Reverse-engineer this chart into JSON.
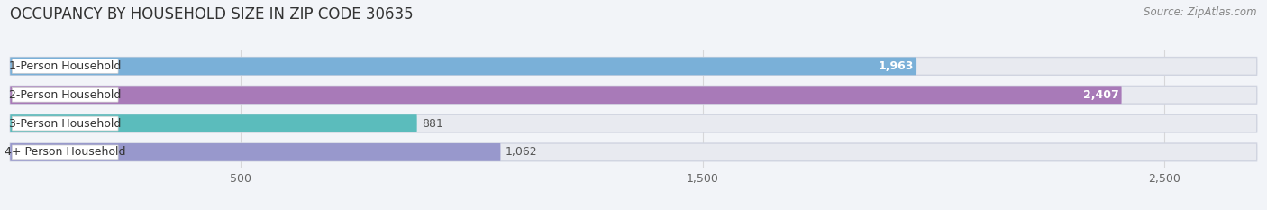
{
  "title": "OCCUPANCY BY HOUSEHOLD SIZE IN ZIP CODE 30635",
  "source": "Source: ZipAtlas.com",
  "categories": [
    "1-Person Household",
    "2-Person Household",
    "3-Person Household",
    "4+ Person Household"
  ],
  "values": [
    1963,
    2407,
    881,
    1062
  ],
  "bar_colors": [
    "#7ab0d8",
    "#a87ab8",
    "#5bbcbc",
    "#9898cc"
  ],
  "label_colors": [
    "white",
    "white",
    "#444444",
    "#444444"
  ],
  "xlim": [
    0,
    2700
  ],
  "xticks": [
    500,
    1500,
    2500
  ],
  "background_color": "#f2f4f8",
  "bar_bg_color": "#e8eaf0",
  "pill_bg_color": "#ffffff",
  "title_fontsize": 12,
  "source_fontsize": 8.5,
  "bar_label_fontsize": 9,
  "category_fontsize": 9,
  "tick_fontsize": 9
}
